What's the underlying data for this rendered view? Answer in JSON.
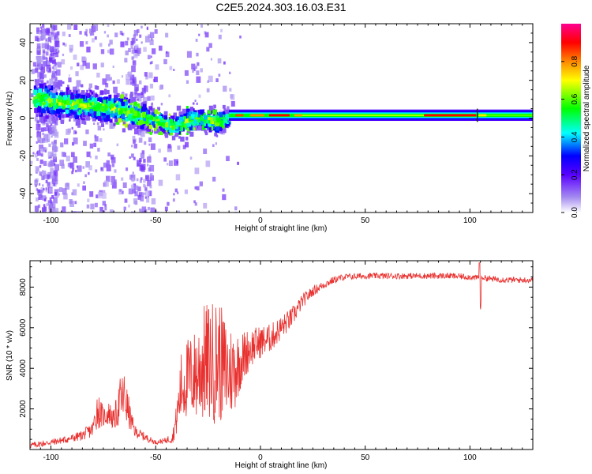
{
  "title": "C2E5.2024.303.16.03.E31",
  "chart_data": [
    {
      "type": "heatmap",
      "xlabel": "Height of straight line (km)",
      "ylabel": "Frequency (Hz)",
      "xlim": [
        -110,
        130
      ],
      "ylim": [
        -50,
        50
      ],
      "x_ticks": [
        "-100",
        "-50",
        "0",
        "50",
        "100"
      ],
      "y_ticks": [
        "-40",
        "-20",
        "0",
        "20",
        "40"
      ],
      "colorbar": {
        "label": "Normalized spectral amplitude",
        "range": [
          0,
          1
        ],
        "ticks": [
          "0.0",
          "0.2",
          "0.4",
          "0.6",
          "0.8"
        ],
        "colors": [
          "#ffffff",
          "#8a2be2",
          "#0000ff",
          "#00ffff",
          "#00ff00",
          "#ffff00",
          "#ff8800",
          "#ff0000",
          "#ff00a0"
        ]
      },
      "ridge": [
        {
          "x": -104,
          "freq": 10,
          "width": 8
        },
        {
          "x": -95,
          "freq": 8,
          "width": 8
        },
        {
          "x": -85,
          "freq": 7,
          "width": 7
        },
        {
          "x": -75,
          "freq": 6,
          "width": 7
        },
        {
          "x": -65,
          "freq": 4,
          "width": 7
        },
        {
          "x": -55,
          "freq": 1,
          "width": 6
        },
        {
          "x": -45,
          "freq": -3,
          "width": 5
        },
        {
          "x": -40,
          "freq": -4,
          "width": 5
        },
        {
          "x": -35,
          "freq": -2,
          "width": 7
        },
        {
          "x": -30,
          "freq": 0,
          "width": 5
        },
        {
          "x": -25,
          "freq": -1,
          "width": 6
        },
        {
          "x": -20,
          "freq": -2,
          "width": 6
        },
        {
          "x": -15,
          "freq": 0,
          "width": 3
        },
        {
          "x": 0,
          "freq": 1,
          "width": 2
        },
        {
          "x": 20,
          "freq": 1.5,
          "width": 2
        },
        {
          "x": 50,
          "freq": 1.5,
          "width": 3
        },
        {
          "x": 80,
          "freq": 1.5,
          "width": 3
        },
        {
          "x": 103,
          "freq": 1.5,
          "width": 3
        },
        {
          "x": 130,
          "freq": 1.5,
          "width": 3
        }
      ]
    },
    {
      "type": "line",
      "xlabel": "Height of straight line (km)",
      "ylabel": "SNR (10 * v/v)",
      "xlim": [
        -110,
        130
      ],
      "ylim": [
        0,
        9300
      ],
      "x_ticks": [
        "-100",
        "-50",
        "0",
        "50",
        "100"
      ],
      "y_ticks": [
        "2000",
        "4000",
        "6000",
        "8000"
      ],
      "series": [
        {
          "color": "#e8312f",
          "x": [
            -110,
            -100,
            -90,
            -85,
            -80,
            -78,
            -75,
            -72,
            -70,
            -67,
            -65,
            -62,
            -60,
            -55,
            -50,
            -45,
            -42,
            -40,
            -38,
            -35,
            -32,
            -30,
            -28,
            -25,
            -22,
            -20,
            -18,
            -15,
            -12,
            -10,
            -5,
            0,
            5,
            10,
            15,
            20,
            25,
            30,
            35,
            40,
            50,
            60,
            70,
            80,
            90,
            100,
            103,
            105,
            110,
            120,
            130
          ],
          "y": [
            200,
            350,
            550,
            700,
            1000,
            2000,
            1600,
            1800,
            1400,
            2400,
            2600,
            1500,
            900,
            600,
            350,
            450,
            600,
            1500,
            3000,
            3500,
            3600,
            3800,
            4200,
            4300,
            4300,
            4500,
            4000,
            3800,
            4000,
            4300,
            5000,
            5300,
            5500,
            6000,
            6500,
            7300,
            7800,
            8100,
            8350,
            8500,
            8550,
            8550,
            8550,
            8550,
            8550,
            8500,
            8450,
            8500,
            8400,
            8350,
            8350
          ],
          "amp": [
            150,
            150,
            200,
            250,
            400,
            1000,
            500,
            600,
            500,
            1200,
            1300,
            600,
            300,
            200,
            100,
            150,
            300,
            800,
            1800,
            2000,
            2200,
            2500,
            2900,
            3000,
            3100,
            3100,
            2800,
            2500,
            2000,
            1500,
            1000,
            800,
            700,
            600,
            500,
            350,
            250,
            200,
            180,
            160,
            150,
            150,
            150,
            150,
            150,
            150,
            150,
            150,
            150,
            150,
            150
          ]
        }
      ]
    }
  ]
}
